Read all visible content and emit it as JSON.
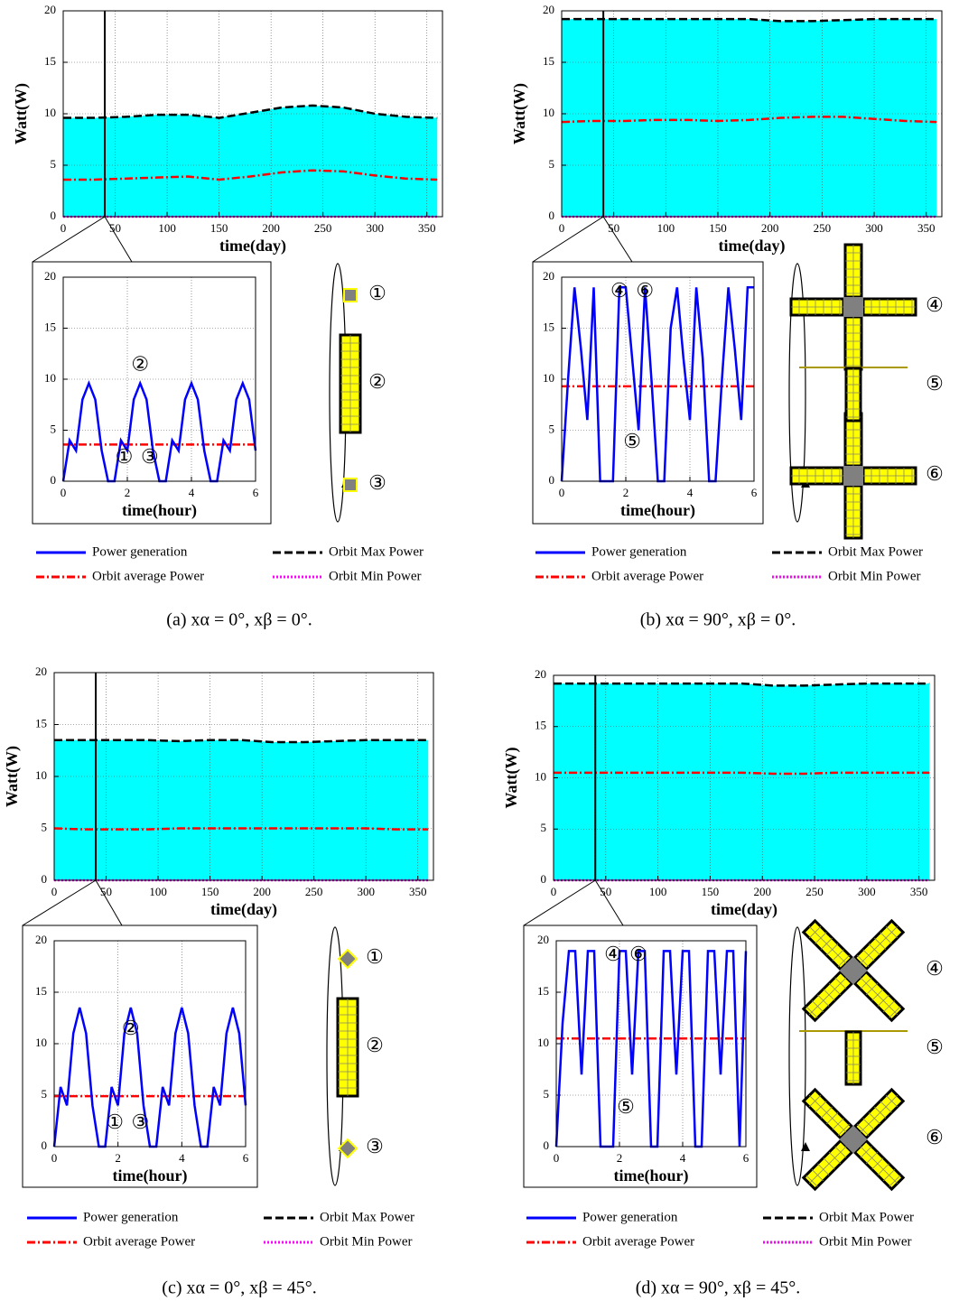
{
  "chart_data": [
    {
      "type": "line",
      "xlabel": "time(day)",
      "ylabel": "Watt(W)",
      "xlim": [
        0,
        365
      ],
      "ylim": [
        0,
        20
      ],
      "xticks": [
        0,
        50,
        100,
        150,
        200,
        250,
        300,
        350
      ],
      "yticks": [
        0,
        5,
        10,
        15,
        20
      ],
      "grid": true,
      "fill": "#00ffff",
      "x": [
        0,
        30,
        60,
        90,
        120,
        150,
        180,
        210,
        240,
        270,
        300,
        330,
        360
      ],
      "series": [
        {
          "name": "Orbit Max Power",
          "color": "#000000",
          "dash": "dashed",
          "values": [
            9.6,
            9.6,
            9.7,
            9.9,
            9.9,
            9.6,
            10.1,
            10.6,
            10.8,
            10.6,
            10.0,
            9.7,
            9.6
          ]
        },
        {
          "name": "Orbit average Power",
          "color": "#ff0000",
          "dash": "dashdot",
          "values": [
            3.6,
            3.6,
            3.7,
            3.8,
            3.9,
            3.6,
            3.9,
            4.3,
            4.5,
            4.4,
            4.0,
            3.7,
            3.6
          ]
        },
        {
          "name": "Orbit Min Power",
          "color": "#ff00ff",
          "dash": "dotted",
          "values": [
            0,
            0,
            0,
            0,
            0,
            0,
            0,
            0,
            0,
            0,
            0,
            0,
            0
          ]
        }
      ]
    },
    {
      "type": "line",
      "xlabel": "time(hour)",
      "xlim": [
        0,
        6
      ],
      "ylim": [
        0,
        20
      ],
      "xticks": [
        0,
        2,
        4,
        6
      ],
      "yticks": [
        0,
        5,
        10,
        15,
        20
      ],
      "grid": true,
      "x": [
        0,
        0.2,
        0.4,
        0.6,
        0.8,
        1.0,
        1.2,
        1.4,
        1.6,
        1.8,
        2.0,
        2.2,
        2.4,
        2.6,
        2.8,
        3.0,
        3.2,
        3.4,
        3.6,
        3.8,
        4.0,
        4.2,
        4.4,
        4.6,
        4.8,
        5.0,
        5.2,
        5.4,
        5.6,
        5.8,
        6.0
      ],
      "series": [
        {
          "name": "Power generation",
          "color": "#0000ff",
          "dash": "solid",
          "values": [
            0,
            4,
            3,
            8,
            9.6,
            8,
            3,
            0,
            0,
            4,
            3,
            8,
            9.6,
            8,
            3,
            0,
            0,
            4,
            3,
            8,
            9.6,
            8,
            3,
            0,
            0,
            4,
            3,
            8,
            9.6,
            8,
            3
          ]
        }
      ],
      "hline": {
        "value": 3.6,
        "color": "#ff0000",
        "dash": "dashdot"
      },
      "annotations": [
        "②",
        "①",
        "③"
      ]
    },
    {
      "type": "line",
      "xlabel": "time(day)",
      "ylabel": "Watt(W)",
      "xlim": [
        0,
        365
      ],
      "ylim": [
        0,
        20
      ],
      "xticks": [
        0,
        50,
        100,
        150,
        200,
        250,
        300,
        350
      ],
      "yticks": [
        0,
        5,
        10,
        15,
        20
      ],
      "grid": true,
      "fill": "#00ffff",
      "x": [
        0,
        30,
        60,
        90,
        120,
        150,
        180,
        210,
        240,
        270,
        300,
        330,
        360
      ],
      "series": [
        {
          "name": "Orbit Max Power",
          "color": "#000000",
          "dash": "dashed",
          "values": [
            19.2,
            19.2,
            19.2,
            19.2,
            19.2,
            19.2,
            19.2,
            19.0,
            19.0,
            19.1,
            19.2,
            19.2,
            19.2
          ]
        },
        {
          "name": "Orbit average Power",
          "color": "#ff0000",
          "dash": "dashdot",
          "values": [
            9.2,
            9.3,
            9.3,
            9.4,
            9.4,
            9.3,
            9.4,
            9.6,
            9.7,
            9.7,
            9.5,
            9.3,
            9.2
          ]
        },
        {
          "name": "Orbit Min Power",
          "color": "#ff00ff",
          "dash": "dotted",
          "values": [
            0,
            0,
            0,
            0,
            0,
            0,
            0,
            0,
            0,
            0,
            0,
            0,
            0
          ]
        }
      ]
    },
    {
      "type": "line",
      "xlabel": "time(hour)",
      "xlim": [
        0,
        6
      ],
      "ylim": [
        0,
        20
      ],
      "xticks": [
        0,
        2,
        4,
        6
      ],
      "yticks": [
        0,
        5,
        10,
        15,
        20
      ],
      "grid": true,
      "x": [
        0,
        0.2,
        0.4,
        0.6,
        0.8,
        1.0,
        1.2,
        1.4,
        1.6,
        1.8,
        2.0,
        2.2,
        2.4,
        2.6,
        2.8,
        3.0,
        3.2,
        3.4,
        3.6,
        3.8,
        4.0,
        4.2,
        4.4,
        4.6,
        4.8,
        5.0,
        5.2,
        5.4,
        5.6,
        5.8,
        6.0
      ],
      "series": [
        {
          "name": "Power generation",
          "color": "#0000ff",
          "dash": "solid",
          "values": [
            0,
            10,
            19,
            13,
            6,
            19,
            0,
            0,
            0,
            19,
            19,
            12,
            5,
            19,
            10,
            0,
            0,
            15,
            19,
            12,
            6,
            19,
            12,
            0,
            0,
            10,
            19,
            13,
            6,
            19,
            19
          ]
        }
      ],
      "hline": {
        "value": 9.3,
        "color": "#ff0000",
        "dash": "dashdot"
      },
      "annotations": [
        "④",
        "⑥",
        "⑤"
      ]
    },
    {
      "type": "line",
      "xlabel": "time(day)",
      "ylabel": "Watt(W)",
      "xlim": [
        0,
        365
      ],
      "ylim": [
        0,
        20
      ],
      "xticks": [
        0,
        50,
        100,
        150,
        200,
        250,
        300,
        350
      ],
      "yticks": [
        0,
        5,
        10,
        15,
        20
      ],
      "grid": true,
      "fill": "#00ffff",
      "x": [
        0,
        30,
        60,
        90,
        120,
        150,
        180,
        210,
        240,
        270,
        300,
        330,
        360
      ],
      "series": [
        {
          "name": "Orbit Max Power",
          "color": "#000000",
          "dash": "dashed",
          "values": [
            13.5,
            13.5,
            13.5,
            13.5,
            13.4,
            13.5,
            13.5,
            13.3,
            13.3,
            13.4,
            13.5,
            13.5,
            13.5
          ]
        },
        {
          "name": "Orbit average Power",
          "color": "#ff0000",
          "dash": "dashdot",
          "values": [
            5.0,
            4.9,
            4.9,
            4.9,
            5.0,
            5.0,
            5.0,
            5.0,
            5.0,
            5.0,
            5.0,
            4.9,
            4.9
          ]
        },
        {
          "name": "Orbit Min Power",
          "color": "#ff00ff",
          "dash": "dotted",
          "values": [
            0,
            0,
            0,
            0,
            0,
            0,
            0,
            0,
            0,
            0,
            0,
            0,
            0
          ]
        }
      ]
    },
    {
      "type": "line",
      "xlabel": "time(hour)",
      "xlim": [
        0,
        6
      ],
      "ylim": [
        0,
        20
      ],
      "xticks": [
        0,
        2,
        4,
        6
      ],
      "yticks": [
        0,
        5,
        10,
        15,
        20
      ],
      "grid": true,
      "x": [
        0,
        0.2,
        0.4,
        0.6,
        0.8,
        1.0,
        1.2,
        1.4,
        1.6,
        1.8,
        2.0,
        2.2,
        2.4,
        2.6,
        2.8,
        3.0,
        3.2,
        3.4,
        3.6,
        3.8,
        4.0,
        4.2,
        4.4,
        4.6,
        4.8,
        5.0,
        5.2,
        5.4,
        5.6,
        5.8,
        6.0
      ],
      "series": [
        {
          "name": "Power generation",
          "color": "#0000ff",
          "dash": "solid",
          "values": [
            0,
            5.8,
            4,
            11,
            13.5,
            11,
            4,
            0,
            0,
            5.8,
            4,
            11,
            13.5,
            11,
            4,
            0,
            0,
            5.8,
            4,
            11,
            13.5,
            11,
            4,
            0,
            0,
            5.8,
            4,
            11,
            13.5,
            11,
            4
          ]
        }
      ],
      "hline": {
        "value": 4.9,
        "color": "#ff0000",
        "dash": "dashdot"
      },
      "annotations": [
        "②",
        "①",
        "③"
      ]
    },
    {
      "type": "line",
      "xlabel": "time(day)",
      "ylabel": "Watt(W)",
      "xlim": [
        0,
        365
      ],
      "ylim": [
        0,
        20
      ],
      "xticks": [
        0,
        50,
        100,
        150,
        200,
        250,
        300,
        350
      ],
      "yticks": [
        0,
        5,
        10,
        15,
        20
      ],
      "grid": true,
      "fill": "#00ffff",
      "x": [
        0,
        30,
        60,
        90,
        120,
        150,
        180,
        210,
        240,
        270,
        300,
        330,
        360
      ],
      "series": [
        {
          "name": "Orbit Max Power",
          "color": "#000000",
          "dash": "dashed",
          "values": [
            19.2,
            19.2,
            19.2,
            19.2,
            19.2,
            19.2,
            19.2,
            19.0,
            19.0,
            19.1,
            19.2,
            19.2,
            19.2
          ]
        },
        {
          "name": "Orbit average Power",
          "color": "#ff0000",
          "dash": "dashdot",
          "values": [
            10.5,
            10.5,
            10.5,
            10.5,
            10.5,
            10.5,
            10.5,
            10.4,
            10.4,
            10.5,
            10.5,
            10.5,
            10.5
          ]
        },
        {
          "name": "Orbit Min Power",
          "color": "#ff00ff",
          "dash": "dotted",
          "values": [
            0,
            0,
            0,
            0,
            0,
            0,
            0,
            0,
            0,
            0,
            0,
            0,
            0
          ]
        }
      ]
    },
    {
      "type": "line",
      "xlabel": "time(hour)",
      "xlim": [
        0,
        6
      ],
      "ylim": [
        0,
        20
      ],
      "xticks": [
        0,
        2,
        4,
        6
      ],
      "yticks": [
        0,
        5,
        10,
        15,
        20
      ],
      "grid": true,
      "x": [
        0,
        0.2,
        0.4,
        0.6,
        0.8,
        1.0,
        1.2,
        1.4,
        1.6,
        1.8,
        2.0,
        2.2,
        2.4,
        2.6,
        2.8,
        3.0,
        3.2,
        3.4,
        3.6,
        3.8,
        4.0,
        4.2,
        4.4,
        4.6,
        4.8,
        5.0,
        5.2,
        5.4,
        5.6,
        5.8,
        6.0
      ],
      "series": [
        {
          "name": "Power generation",
          "color": "#0000ff",
          "dash": "solid",
          "values": [
            0,
            12,
            19,
            19,
            7,
            19,
            19,
            0,
            0,
            0,
            19,
            19,
            7,
            19,
            19,
            0,
            0,
            19,
            19,
            7,
            19,
            19,
            0,
            0,
            19,
            19,
            7,
            19,
            19,
            0,
            19
          ]
        }
      ],
      "hline": {
        "value": 10.5,
        "color": "#ff0000",
        "dash": "dashdot"
      },
      "annotations": [
        "④",
        "⑥",
        "⑤"
      ]
    }
  ],
  "panels": [
    {
      "caption": "(a) xα = 0°, xβ = 0°.",
      "icon_labels": [
        "①",
        "②",
        "③"
      ]
    },
    {
      "caption": "(b) xα = 90°, xβ = 0°.",
      "icon_labels": [
        "④",
        "⑤",
        "⑥"
      ]
    },
    {
      "caption": "(c) xα = 0°, xβ = 45°.",
      "icon_labels": [
        "①",
        "②",
        "③"
      ]
    },
    {
      "caption": "(d) xα = 90°, xβ = 45°.",
      "icon_labels": [
        "④",
        "⑤",
        "⑥"
      ]
    }
  ]
}
